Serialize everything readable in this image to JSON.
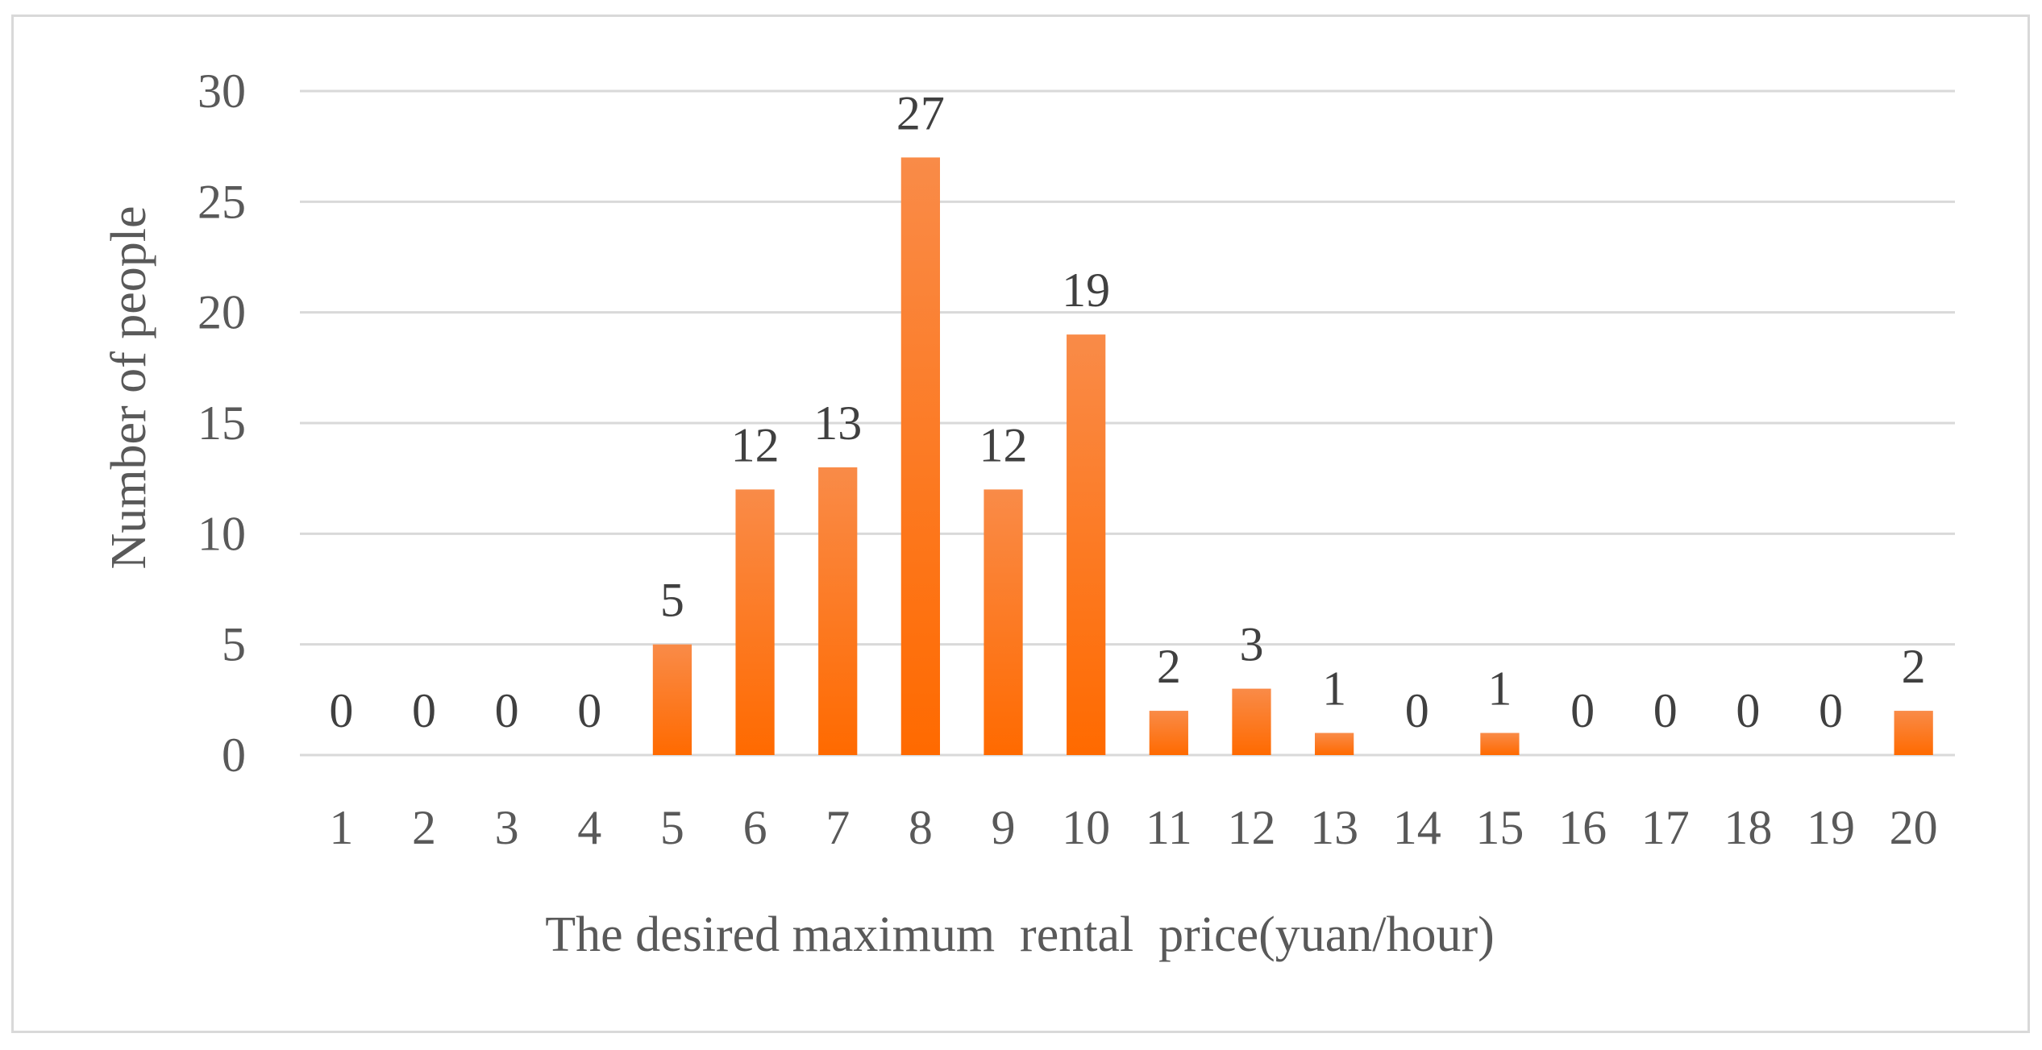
{
  "chart_data": {
    "type": "bar",
    "title": "",
    "xlabel": "The desired maximum  rental  price(yuan/hour)",
    "ylabel": "Number of people",
    "categories": [
      "1",
      "2",
      "3",
      "4",
      "5",
      "6",
      "7",
      "8",
      "9",
      "10",
      "11",
      "12",
      "13",
      "14",
      "15",
      "16",
      "17",
      "18",
      "19",
      "20"
    ],
    "values": [
      0,
      0,
      0,
      0,
      5,
      12,
      13,
      27,
      12,
      19,
      2,
      3,
      1,
      0,
      1,
      0,
      0,
      0,
      0,
      2
    ],
    "ylim": [
      0,
      30
    ],
    "yticks": [
      0,
      5,
      10,
      15,
      20,
      25,
      30
    ],
    "grid": true,
    "legend": "none",
    "data_labels": true,
    "bar_color_top": "#f98b48",
    "bar_color_bottom": "#ff6a00"
  }
}
